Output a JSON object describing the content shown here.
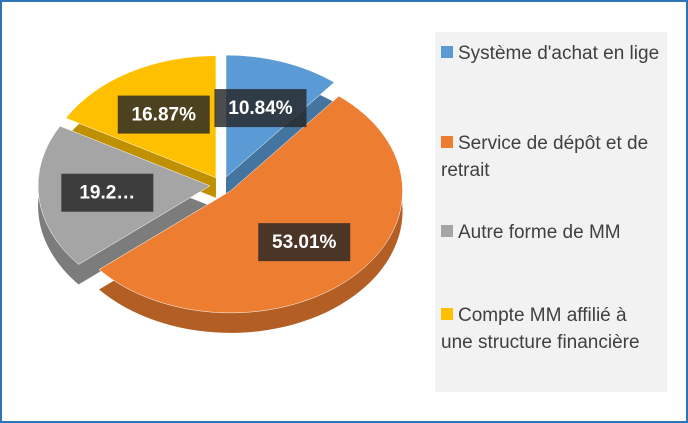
{
  "chart_data": {
    "type": "pie",
    "categories": [
      "Système d'achat en lige",
      "Service de dépôt et de retrait",
      "Autre forme de MM",
      "Compte MM affilié à une structure financière"
    ],
    "values": [
      10.84,
      53.01,
      19.28,
      16.87
    ],
    "value_labels": [
      "10.84%",
      "53.01%",
      "19.2…",
      "16.87%"
    ],
    "colors": [
      "#5b9bd5",
      "#ed7d31",
      "#a5a5a5",
      "#ffc000"
    ],
    "legend": "right"
  }
}
